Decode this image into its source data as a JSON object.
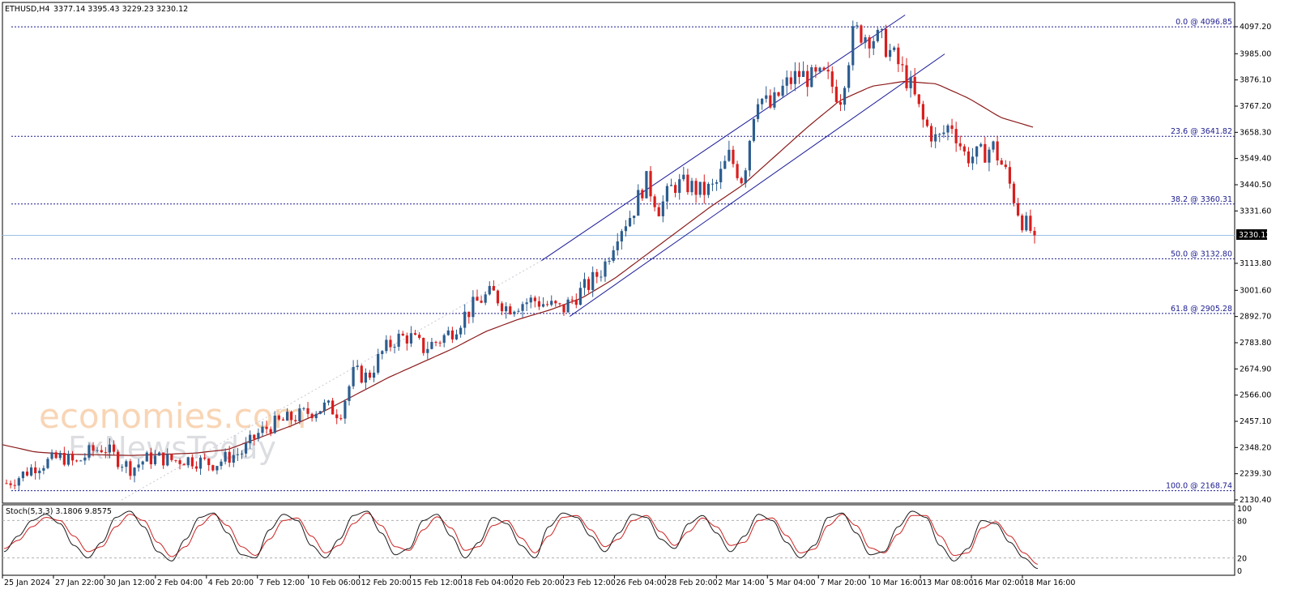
{
  "header": {
    "symbol": "ETHUSD,H4",
    "ohlc": "3377.14 3395.43 3229.23 3230.12"
  },
  "watermark": {
    "line1": "economies.com",
    "line2": "FxNewsToday"
  },
  "colors": {
    "bull": "#2c5d8f",
    "bear": "#d81e1e",
    "ma": "#8b1a1a",
    "fib": "#1b1b8f",
    "channel": "#1b1b9a",
    "stoch_main": "#1a1a1a",
    "stoch_signal": "#cc2222",
    "price_line": "#9cc2e6",
    "grid": "#b0b0b0"
  },
  "chart_data": [
    {
      "type": "candlestick",
      "x_tick_labels": [
        "25 Jan 2024",
        "27 Jan 22:00",
        "30 Jan 12:00",
        "2 Feb 04:00",
        "4 Feb 20:00",
        "7 Feb 12:00",
        "10 Feb 06:00",
        "12 Feb 20:00",
        "15 Feb 12:00",
        "18 Feb 04:00",
        "20 Feb 20:00",
        "23 Feb 12:00",
        "26 Feb 04:00",
        "28 Feb 20:00",
        "2 Mar 14:00",
        "5 Mar 04:00",
        "7 Mar 20:00",
        "10 Mar 16:00",
        "13 Mar 08:00",
        "16 Mar 02:00",
        "18 Mar 16:00"
      ],
      "y_tick_labels": [
        "4097.20",
        "3985.00",
        "3876.10",
        "3767.20",
        "3658.30",
        "3549.40",
        "3440.50",
        "3331.60",
        "3113.80",
        "3001.60",
        "2892.70",
        "2783.80",
        "2674.90",
        "2566.00",
        "2457.10",
        "2348.20",
        "2239.30",
        "2130.40"
      ],
      "ylim": [
        2130.4,
        4140
      ],
      "current_price": "3230.12",
      "fibonacci_levels": [
        {
          "label": "0.0 @ 4096.85",
          "value": 4096.85
        },
        {
          "label": "23.6 @ 3641.82",
          "value": 3641.82
        },
        {
          "label": "38.2 @ 3360.31",
          "value": 3360.31
        },
        {
          "label": "50.0 @ 3132.80",
          "value": 3132.8
        },
        {
          "label": "61.8 @ 2905.28",
          "value": 2905.28
        },
        {
          "label": "100.0 @ 2168.74",
          "value": 2168.74
        }
      ],
      "price_path": [
        2200,
        2230,
        2270,
        2290,
        2310,
        2280,
        2330,
        2350,
        2300,
        2260,
        2300,
        2305,
        2295,
        2300,
        2290,
        2280,
        2310,
        2330,
        2400,
        2440,
        2460,
        2480,
        2500,
        2520,
        2490,
        2660,
        2640,
        2740,
        2800,
        2810,
        2760,
        2790,
        2830,
        2900,
        2960,
        2990,
        2930,
        2950,
        2960,
        2940,
        2920,
        2980,
        3030,
        3100,
        3250,
        3320,
        3460,
        3340,
        3440,
        3440,
        3410,
        3430,
        3560,
        3460,
        3820,
        3760,
        3850,
        3900,
        3880,
        3890,
        3800,
        4080,
        4060,
        4040,
        3960,
        3860,
        3700,
        3620,
        3700,
        3560,
        3560,
        3600,
        3480,
        3300,
        3230
      ],
      "moving_average_path": [
        2360,
        2330,
        2320,
        2318,
        2315,
        2320,
        2325,
        2340,
        2390,
        2440,
        2500,
        2570,
        2640,
        2700,
        2760,
        2830,
        2880,
        2920,
        2970,
        3050,
        3150,
        3250,
        3350,
        3440,
        3560,
        3680,
        3790,
        3850,
        3870,
        3860,
        3800,
        3720,
        3680
      ],
      "channel": {
        "upper": [
          [
            0.4,
            3125
          ],
          [
            0.7,
            4146
          ]
        ],
        "lower": [
          [
            0.45,
            2893
          ],
          [
            0.745,
            3984
          ]
        ]
      }
    },
    {
      "type": "oscillator",
      "title": "Stoch(5,3,3) 3.1806 9.8575",
      "y_tick_labels": [
        "100",
        "80",
        "20",
        "0"
      ],
      "ylim": [
        0,
        100
      ],
      "levels": [
        80,
        20
      ],
      "main": [
        30,
        55,
        80,
        90,
        75,
        40,
        20,
        45,
        85,
        95,
        70,
        30,
        15,
        50,
        85,
        92,
        60,
        25,
        20,
        65,
        90,
        80,
        40,
        20,
        50,
        88,
        95,
        60,
        25,
        35,
        80,
        90,
        55,
        20,
        45,
        85,
        75,
        40,
        20,
        70,
        92,
        85,
        55,
        30,
        60,
        90,
        85,
        50,
        35,
        75,
        88,
        60,
        30,
        55,
        90,
        80,
        45,
        20,
        40,
        85,
        92,
        60,
        25,
        30,
        70,
        95,
        85,
        40,
        15,
        35,
        80,
        75,
        45,
        20,
        3
      ],
      "signal": [
        35,
        48,
        70,
        85,
        80,
        55,
        30,
        38,
        70,
        90,
        80,
        45,
        22,
        38,
        72,
        90,
        72,
        38,
        24,
        50,
        80,
        84,
        55,
        28,
        40,
        75,
        92,
        72,
        38,
        32,
        65,
        86,
        68,
        32,
        38,
        72,
        80,
        52,
        28,
        55,
        85,
        88,
        65,
        38,
        50,
        80,
        88,
        62,
        40,
        62,
        84,
        70,
        40,
        45,
        80,
        84,
        56,
        28,
        34,
        72,
        90,
        72,
        36,
        28,
        58,
        88,
        88,
        55,
        24,
        28,
        68,
        78,
        55,
        28,
        10
      ]
    }
  ]
}
